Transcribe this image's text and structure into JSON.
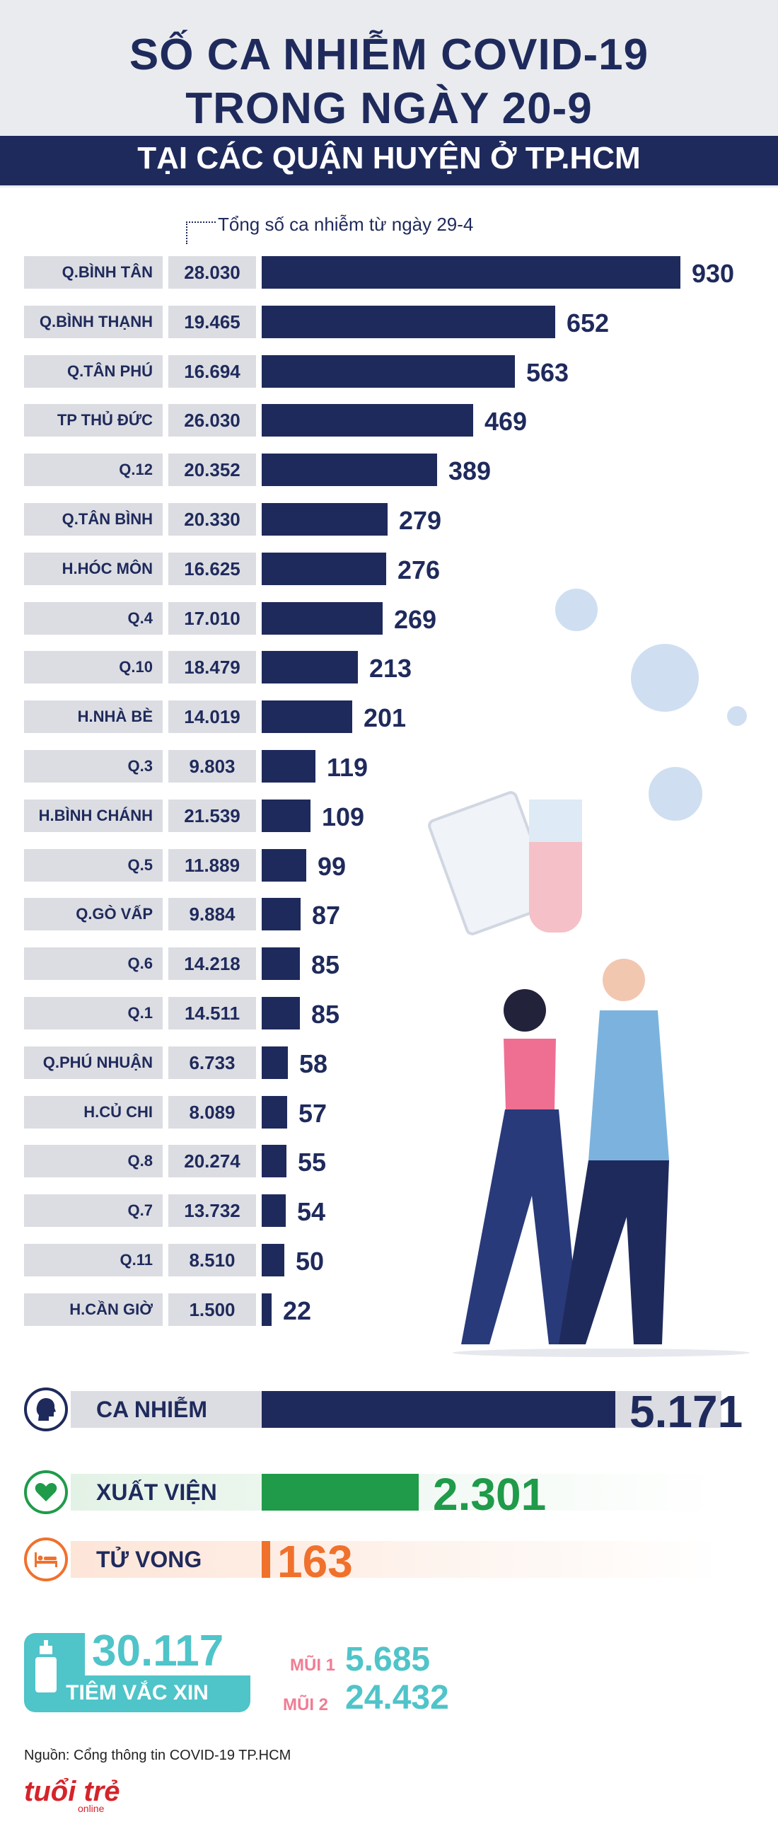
{
  "header": {
    "title_line1": "SỐ CA NHIỄM COVID-19",
    "title_line2": "TRONG NGÀY 20-9",
    "subtitle": "TẠI CÁC QUẬN HUYỆN Ở TP.HCM"
  },
  "chart_data": {
    "type": "bar",
    "orientation": "horizontal",
    "note": "Tổng số ca nhiễm từ ngày 29-4",
    "categories": [
      "Q.BÌNH TÂN",
      "Q.BÌNH THẠNH",
      "Q.TÂN PHÚ",
      "TP THỦ ĐỨC",
      "Q.12",
      "Q.TÂN BÌNH",
      "H.HÓC MÔN",
      "Q.4",
      "Q.10",
      "H.NHÀ BÈ",
      "Q.3",
      "H.BÌNH CHÁNH",
      "Q.5",
      "Q.GÒ VẤP",
      "Q.6",
      "Q.1",
      "Q.PHÚ NHUẬN",
      "H.CỦ CHI",
      "Q.8",
      "Q.7",
      "Q.11",
      "H.CẦN GIỜ"
    ],
    "totals": [
      "28.030",
      "19.465",
      "16.694",
      "26.030",
      "20.352",
      "20.330",
      "16.625",
      "17.010",
      "18.479",
      "14.019",
      "9.803",
      "21.539",
      "11.889",
      "9.884",
      "14.218",
      "14.511",
      "6.733",
      "8.089",
      "20.274",
      "13.732",
      "8.510",
      "1.500"
    ],
    "values": [
      930,
      652,
      563,
      469,
      389,
      279,
      276,
      269,
      213,
      201,
      119,
      109,
      99,
      87,
      85,
      85,
      58,
      57,
      55,
      54,
      50,
      22
    ],
    "xlim": [
      0,
      930
    ],
    "colors": {
      "bar": "#1f2a5c",
      "label_bg": "#dcdde2"
    }
  },
  "summary": {
    "infected": {
      "label": "CA NHIỄM",
      "value": "5.171",
      "color": "#1f2a5c",
      "icon": "head-icon"
    },
    "discharged": {
      "label": "XUẤT VIỆN",
      "value": "2.301",
      "color": "#1f9b4a",
      "icon": "heart-icon"
    },
    "deaths": {
      "label": "TỬ VONG",
      "value": "163",
      "color": "#f0712c",
      "icon": "bed-icon"
    }
  },
  "vaccination": {
    "total": "30.117",
    "label": "TIÊM VẮC XIN",
    "dose1_label": "MŨI 1",
    "dose1_value": "5.685",
    "dose2_label": "MŨI 2",
    "dose2_value": "24.432",
    "color": "#4fc4c9"
  },
  "footer": {
    "source": "Nguồn: Cổng thông tin COVID-19 TP.HCM",
    "logo": "tuổi trẻ",
    "logo_sub": "online"
  }
}
